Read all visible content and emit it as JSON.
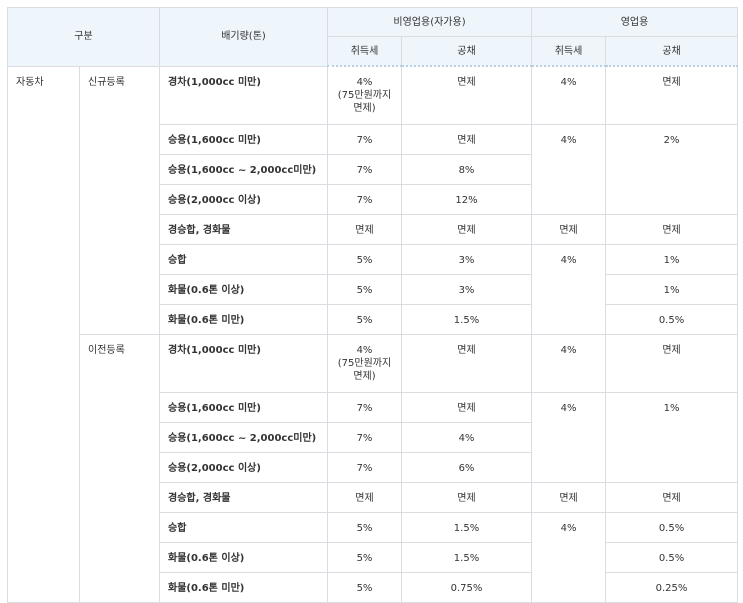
{
  "header": {
    "group": "구분",
    "displacement": "배기량(톤)",
    "non_commercial": "비영업용(자가용)",
    "commercial": "영업용",
    "acq_tax_1": "취득세",
    "deduction_1": "공채",
    "acq_tax_2": "취득세",
    "deduction_2": "공채"
  },
  "category": "자동차",
  "sections": [
    {
      "name": "신규등록",
      "rows": {
        "r1": {
          "type": "경차(1,000cc 미만)",
          "acq": "4%",
          "acq_note_1": "(75만원까지",
          "acq_note_2": "면제)",
          "ded": "면제",
          "acq2": "4%",
          "ded2": "면제"
        },
        "r2": {
          "type": "승용(1,600cc 미만)",
          "acq": "7%",
          "ded": "면제",
          "acq2": "4%",
          "ded2": "2%"
        },
        "r3": {
          "type": "승용(1,600cc ~ 2,000cc미만)",
          "acq": "7%",
          "ded": "8%"
        },
        "r4": {
          "type": "승용(2,000cc 이상)",
          "acq": "7%",
          "ded": "12%"
        },
        "r5": {
          "type": "경승합, 경화물",
          "acq": "면제",
          "ded": "면제",
          "acq2": "면제",
          "ded2": "면제"
        },
        "r6": {
          "type": "승합",
          "acq": "5%",
          "ded": "3%",
          "acq2": "4%",
          "ded2": "1%"
        },
        "r7": {
          "type": "화물(0.6톤 이상)",
          "acq": "5%",
          "ded": "3%",
          "ded2": "1%"
        },
        "r8": {
          "type": "화물(0.6톤 미만)",
          "acq": "5%",
          "ded": "1.5%",
          "ded2": "0.5%"
        }
      }
    },
    {
      "name": "이전등록",
      "rows": {
        "r1": {
          "type": "경차(1,000cc 미만)",
          "acq": "4%",
          "acq_note_1": "(75만원까지",
          "acq_note_2": "면제)",
          "ded": "면제",
          "acq2": "4%",
          "ded2": "면제"
        },
        "r2": {
          "type": "승용(1,600cc 미만)",
          "acq": "7%",
          "ded": "면제",
          "acq2": "4%",
          "ded2": "1%"
        },
        "r3": {
          "type": "승용(1,600cc ~ 2,000cc미만)",
          "acq": "7%",
          "ded": "4%"
        },
        "r4": {
          "type": "승용(2,000cc 이상)",
          "acq": "7%",
          "ded": "6%"
        },
        "r5": {
          "type": "경승합, 경화물",
          "acq": "면제",
          "ded": "면제",
          "acq2": "면제",
          "ded2": "면제"
        },
        "r6": {
          "type": "승합",
          "acq": "5%",
          "ded": "1.5%",
          "acq2": "4%",
          "ded2": "0.5%"
        },
        "r7": {
          "type": "화물(0.6톤 이상)",
          "acq": "5%",
          "ded": "1.5%",
          "ded2": "0.5%"
        },
        "r8": {
          "type": "화물(0.6톤 미만)",
          "acq": "5%",
          "ded": "0.75%",
          "ded2": "0.25%"
        }
      }
    }
  ]
}
